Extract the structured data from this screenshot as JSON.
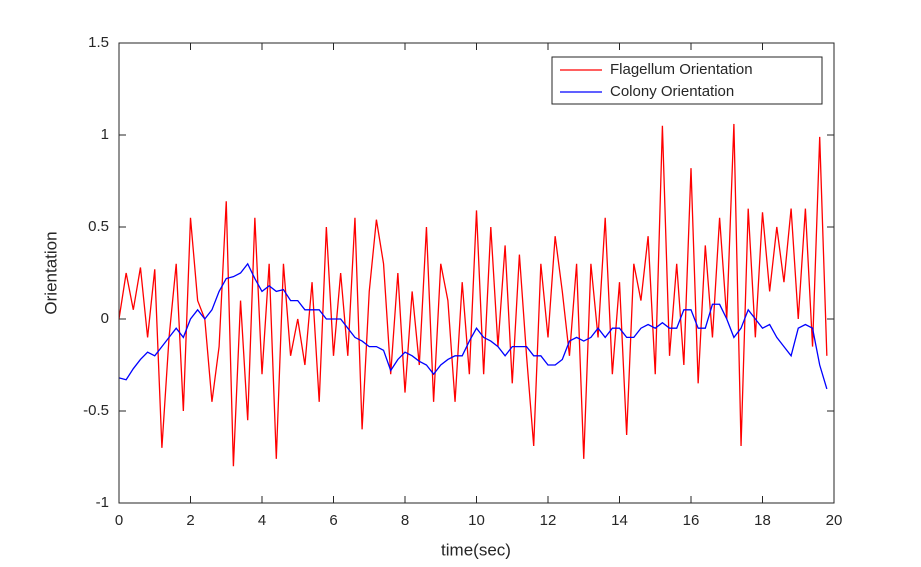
{
  "chart_data": {
    "type": "line",
    "xlabel": "time(sec)",
    "ylabel": "Orientation",
    "xlim": [
      0,
      20
    ],
    "ylim": [
      -1,
      1.5
    ],
    "xticks": [
      0,
      2,
      4,
      6,
      8,
      10,
      12,
      14,
      16,
      18,
      20
    ],
    "yticks": [
      -1,
      -0.5,
      0,
      0.5,
      1,
      1.5
    ],
    "legend": "northeast",
    "box": true,
    "x": [
      0,
      0.2,
      0.4,
      0.6,
      0.8,
      1,
      1.2,
      1.4,
      1.6,
      1.8,
      2,
      2.2,
      2.4,
      2.6,
      2.8,
      3,
      3.2,
      3.4,
      3.6,
      3.8,
      4,
      4.2,
      4.4,
      4.6,
      4.8,
      5,
      5.2,
      5.4,
      5.6,
      5.8,
      6,
      6.2,
      6.4,
      6.6,
      6.8,
      7,
      7.2,
      7.4,
      7.6,
      7.8,
      8,
      8.2,
      8.4,
      8.6,
      8.8,
      9,
      9.2,
      9.4,
      9.6,
      9.8,
      10,
      10.2,
      10.4,
      10.6,
      10.8,
      11,
      11.2,
      11.4,
      11.6,
      11.8,
      12,
      12.2,
      12.4,
      12.6,
      12.8,
      13,
      13.2,
      13.4,
      13.6,
      13.8,
      14,
      14.2,
      14.4,
      14.6,
      14.8,
      15,
      15.2,
      15.4,
      15.6,
      15.8,
      16,
      16.2,
      16.4,
      16.6,
      16.8,
      17,
      17.2,
      17.4,
      17.6,
      17.8,
      18,
      18.2,
      18.4,
      18.6,
      18.8,
      19,
      19.2,
      19.4,
      19.6,
      19.8
    ],
    "series": [
      {
        "name": "Flagellum Orientation",
        "color": "#ff0000",
        "values": [
          0,
          0.25,
          0.05,
          0.28,
          -0.1,
          0.27,
          -0.7,
          -0.1,
          0.3,
          -0.5,
          0.55,
          0.1,
          0,
          -0.45,
          -0.15,
          0.64,
          -0.8,
          0.1,
          -0.55,
          0.55,
          -0.3,
          0.3,
          -0.76,
          0.3,
          -0.2,
          0,
          -0.25,
          0.2,
          -0.45,
          0.5,
          -0.2,
          0.25,
          -0.2,
          0.55,
          -0.6,
          0.15,
          0.54,
          0.3,
          -0.3,
          0.25,
          -0.4,
          0.15,
          -0.25,
          0.5,
          -0.45,
          0.3,
          0.1,
          -0.45,
          0.2,
          -0.3,
          0.59,
          -0.3,
          0.5,
          -0.15,
          0.4,
          -0.35,
          0.35,
          -0.2,
          -0.69,
          0.3,
          -0.1,
          0.45,
          0.15,
          -0.2,
          0.3,
          -0.76,
          0.3,
          -0.1,
          0.55,
          -0.3,
          0.2,
          -0.63,
          0.3,
          0.1,
          0.45,
          -0.3,
          1.05,
          -0.2,
          0.3,
          -0.25,
          0.82,
          -0.35,
          0.4,
          -0.1,
          0.55,
          0,
          1.06,
          -0.69,
          0.6,
          -0.1,
          0.58,
          0.15,
          0.5,
          0.2,
          0.6,
          0,
          0.6,
          -0.15,
          0.99,
          -0.2
        ]
      },
      {
        "name": "Colony Orientation",
        "color": "#0000ff",
        "values": [
          -0.32,
          -0.33,
          -0.27,
          -0.22,
          -0.18,
          -0.2,
          -0.15,
          -0.1,
          -0.05,
          -0.1,
          0,
          0.05,
          0,
          0.05,
          0.15,
          0.22,
          0.23,
          0.25,
          0.3,
          0.22,
          0.15,
          0.18,
          0.15,
          0.16,
          0.1,
          0.1,
          0.05,
          0.05,
          0.05,
          0,
          0,
          0,
          -0.05,
          -0.1,
          -0.12,
          -0.15,
          -0.15,
          -0.17,
          -0.28,
          -0.22,
          -0.18,
          -0.2,
          -0.23,
          -0.25,
          -0.3,
          -0.25,
          -0.22,
          -0.2,
          -0.2,
          -0.12,
          -0.05,
          -0.1,
          -0.12,
          -0.15,
          -0.2,
          -0.15,
          -0.15,
          -0.15,
          -0.2,
          -0.2,
          -0.25,
          -0.25,
          -0.22,
          -0.12,
          -0.1,
          -0.12,
          -0.1,
          -0.05,
          -0.1,
          -0.05,
          -0.05,
          -0.1,
          -0.1,
          -0.05,
          -0.03,
          -0.05,
          -0.02,
          -0.05,
          -0.05,
          0.05,
          0.05,
          -0.05,
          -0.05,
          0.08,
          0.08,
          0,
          -0.1,
          -0.05,
          0.05,
          0,
          -0.05,
          -0.03,
          -0.1,
          -0.15,
          -0.2,
          -0.05,
          -0.03,
          -0.05,
          -0.25,
          -0.38
        ]
      }
    ]
  }
}
